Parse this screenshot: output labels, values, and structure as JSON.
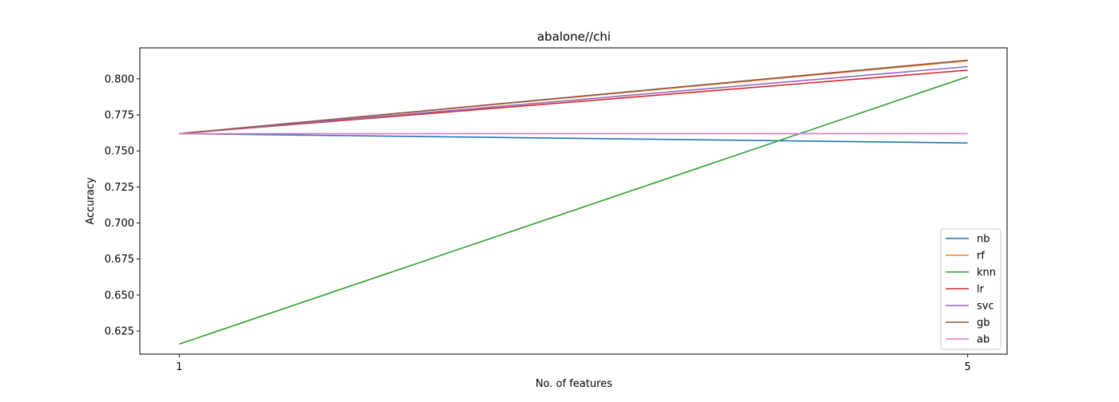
{
  "chart_data": {
    "type": "line",
    "title": "abalone//chi",
    "xlabel": "No. of features",
    "ylabel": "Accuracy",
    "x": [
      1,
      5
    ],
    "xticks": [
      "1",
      "5"
    ],
    "xlim": [
      0.8,
      5.2
    ],
    "ylim": [
      0.609,
      0.8215
    ],
    "yticks": [
      "0.625",
      "0.650",
      "0.675",
      "0.700",
      "0.725",
      "0.750",
      "0.775",
      "0.800"
    ],
    "legend_position": "bottom-right",
    "grid": false,
    "series": [
      {
        "name": "nb",
        "color": "#1f77b4",
        "values": [
          0.762,
          0.7555
        ]
      },
      {
        "name": "rf",
        "color": "#ff7f0e",
        "values": [
          0.762,
          0.8125
        ]
      },
      {
        "name": "knn",
        "color": "#2ca02c",
        "values": [
          0.616,
          0.8015
        ]
      },
      {
        "name": "lr",
        "color": "#d62728",
        "values": [
          0.762,
          0.806
        ]
      },
      {
        "name": "svc",
        "color": "#9467bd",
        "values": [
          0.762,
          0.8085
        ]
      },
      {
        "name": "gb",
        "color": "#8c564b",
        "values": [
          0.762,
          0.813
        ]
      },
      {
        "name": "ab",
        "color": "#e377c2",
        "values": [
          0.762,
          0.762
        ]
      }
    ]
  }
}
